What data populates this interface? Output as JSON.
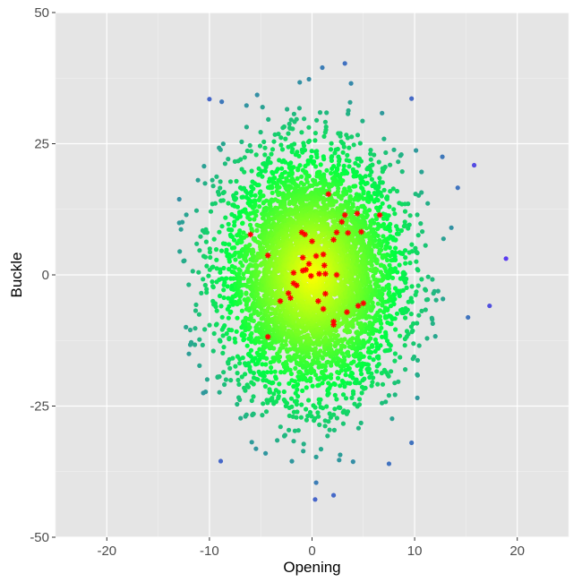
{
  "chart_data": {
    "type": "scatter",
    "title": "",
    "xlabel": "Opening",
    "ylabel": "Buckle",
    "xlim": [
      -25,
      25
    ],
    "ylim": [
      -50,
      50
    ],
    "x_ticks": [
      -20,
      -10,
      0,
      10,
      20
    ],
    "y_ticks": [
      -50,
      -25,
      0,
      25,
      50
    ],
    "x_tick_labels": [
      "-20",
      "-10",
      "0",
      "10",
      "20"
    ],
    "y_tick_labels": [
      "-50",
      "-25",
      "0",
      "25",
      "50"
    ],
    "grid": true,
    "legend": "none",
    "colors": {
      "panel": "#e5e5e5",
      "grid": "#ffffff",
      "center": "#ffff00",
      "mid": "#00ff40",
      "outer": "#5a3cf0",
      "highlight": "#ff0000"
    },
    "cloud": {
      "description_marker": "filled-circle",
      "x_spread_sd": 4.3,
      "y_spread_sd": 11.3,
      "point_count_approx": 5000
    },
    "outliers": [
      {
        "x": -10.0,
        "y": 33.5
      },
      {
        "x": -8.8,
        "y": 33.0
      },
      {
        "x": 1.0,
        "y": 39.5
      },
      {
        "x": 3.2,
        "y": 40.3
      },
      {
        "x": -0.3,
        "y": 37.3
      },
      {
        "x": -1.2,
        "y": 36.7
      },
      {
        "x": 3.8,
        "y": 36.5
      },
      {
        "x": 9.7,
        "y": 33.6
      },
      {
        "x": 15.8,
        "y": 20.9
      },
      {
        "x": 18.9,
        "y": 3.1
      },
      {
        "x": 17.3,
        "y": -5.9
      },
      {
        "x": 15.2,
        "y": -8.1
      },
      {
        "x": -11.3,
        "y": -5.7
      },
      {
        "x": -10.6,
        "y": -22.5
      },
      {
        "x": -8.9,
        "y": -35.5
      },
      {
        "x": 0.4,
        "y": -39.6
      },
      {
        "x": 2.1,
        "y": -42.0
      },
      {
        "x": 0.3,
        "y": -42.8
      },
      {
        "x": 4.0,
        "y": -35.6
      },
      {
        "x": 7.5,
        "y": -36.0
      },
      {
        "x": 9.7,
        "y": -32.0
      },
      {
        "x": 14.2,
        "y": 16.6
      },
      {
        "x": 12.7,
        "y": 22.5
      }
    ],
    "highlighted_points": [
      {
        "x": -6.0,
        "y": 7.7
      },
      {
        "x": -4.3,
        "y": 3.7
      },
      {
        "x": -4.3,
        "y": -11.8
      },
      {
        "x": -3.1,
        "y": -5.0
      },
      {
        "x": -2.3,
        "y": -3.5
      },
      {
        "x": -2.1,
        "y": -4.4
      },
      {
        "x": -1.8,
        "y": 0.4
      },
      {
        "x": -1.8,
        "y": -1.6
      },
      {
        "x": -1.5,
        "y": -2.0
      },
      {
        "x": -1.0,
        "y": 8.1
      },
      {
        "x": -0.7,
        "y": 7.7
      },
      {
        "x": -0.9,
        "y": 3.3
      },
      {
        "x": -0.9,
        "y": 0.8
      },
      {
        "x": -0.3,
        "y": 2.1
      },
      {
        "x": -0.6,
        "y": 1.0
      },
      {
        "x": 0.0,
        "y": 6.4
      },
      {
        "x": 0.4,
        "y": 3.6
      },
      {
        "x": 0.7,
        "y": 0.2
      },
      {
        "x": 1.1,
        "y": 3.9
      },
      {
        "x": 1.2,
        "y": 1.8
      },
      {
        "x": 1.3,
        "y": 0.2
      },
      {
        "x": 1.3,
        "y": -3.6
      },
      {
        "x": 0.6,
        "y": -5.0
      },
      {
        "x": 1.1,
        "y": -6.5
      },
      {
        "x": 1.6,
        "y": 15.4
      },
      {
        "x": 2.1,
        "y": 6.7
      },
      {
        "x": 2.4,
        "y": 8.1
      },
      {
        "x": 2.9,
        "y": 10.1
      },
      {
        "x": 3.2,
        "y": 11.4
      },
      {
        "x": 3.5,
        "y": 8.0
      },
      {
        "x": 4.4,
        "y": 11.7
      },
      {
        "x": 4.8,
        "y": 8.2
      },
      {
        "x": 6.6,
        "y": 11.4
      },
      {
        "x": 2.1,
        "y": -8.9
      },
      {
        "x": 2.1,
        "y": -9.5
      },
      {
        "x": 3.4,
        "y": -7.1
      },
      {
        "x": 4.5,
        "y": -5.9
      },
      {
        "x": 5.0,
        "y": -5.4
      },
      {
        "x": 2.4,
        "y": 0.0
      },
      {
        "x": -0.1,
        "y": -0.2
      }
    ]
  }
}
